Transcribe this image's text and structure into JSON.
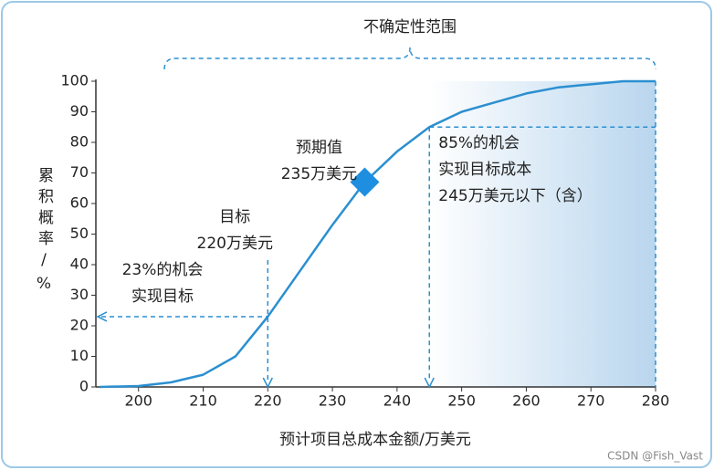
{
  "chart_data": {
    "type": "line",
    "x_label": "预计项目总成本金额/万美元",
    "y_label": "累积概率/%",
    "x": [
      194,
      200,
      205,
      210,
      215,
      220,
      225,
      230,
      235,
      240,
      245,
      250,
      255,
      260,
      265,
      270,
      275,
      280
    ],
    "y": [
      0,
      0.3,
      1.5,
      4,
      10,
      23,
      38,
      53,
      67,
      77,
      85,
      90,
      93,
      96,
      98,
      99,
      100,
      100
    ],
    "color": "#2b8fd0",
    "xlim": [
      193.4,
      280
    ],
    "ylim": [
      0,
      100
    ],
    "xticks": [
      200,
      210,
      220,
      230,
      240,
      250,
      260,
      270,
      280
    ],
    "yticks": [
      0,
      10,
      20,
      30,
      40,
      50,
      60,
      70,
      80,
      90,
      100
    ],
    "uncertainty_range": {
      "label": "不确定性范围",
      "from": 204,
      "to": 280
    },
    "target": {
      "x": 220,
      "y": 23,
      "label": [
        "目标",
        "220万美元"
      ],
      "chance_label": [
        "23%的机会",
        "实现目标"
      ]
    },
    "expected": {
      "x": 235,
      "y": 67,
      "label": [
        "预期值",
        "235万美元"
      ]
    },
    "threshold": {
      "x": 245,
      "y": 85,
      "label": [
        "85%的机会",
        "实现目标成本",
        "245万美元以下（含）"
      ]
    },
    "watermark": "CSDN @Fish_Vast"
  }
}
